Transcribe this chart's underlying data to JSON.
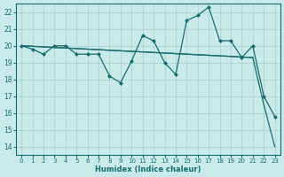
{
  "xlabel": "Humidex (Indice chaleur)",
  "bg_color": "#c8eaea",
  "grid_color": "#b0d0d0",
  "line_color": "#1a6b6b",
  "xlim": [
    -0.5,
    23.5
  ],
  "ylim": [
    13.5,
    22.5
  ],
  "yticks": [
    14,
    15,
    16,
    17,
    18,
    19,
    20,
    21,
    22
  ],
  "xticks": [
    0,
    1,
    2,
    3,
    4,
    5,
    6,
    7,
    8,
    9,
    10,
    11,
    12,
    13,
    14,
    15,
    16,
    17,
    18,
    19,
    20,
    21,
    22,
    23
  ],
  "series1_x": [
    0,
    1,
    2,
    3,
    4,
    5,
    6,
    7,
    8,
    9,
    10,
    11,
    12,
    13,
    14,
    15,
    16,
    17,
    18,
    19,
    20,
    21,
    22,
    23
  ],
  "series1_y": [
    20.0,
    19.8,
    19.5,
    20.0,
    20.0,
    19.5,
    19.5,
    19.5,
    18.2,
    17.8,
    19.1,
    20.6,
    20.3,
    19.0,
    18.3,
    21.5,
    21.8,
    22.3,
    20.3,
    20.3,
    19.3,
    20.0,
    17.0,
    15.8
  ],
  "series2_x": [
    0,
    21
  ],
  "series2_y": [
    20.0,
    19.3
  ],
  "series3_x": [
    0,
    21,
    22,
    23
  ],
  "series3_y": [
    20.0,
    19.3,
    16.5,
    14.0
  ]
}
